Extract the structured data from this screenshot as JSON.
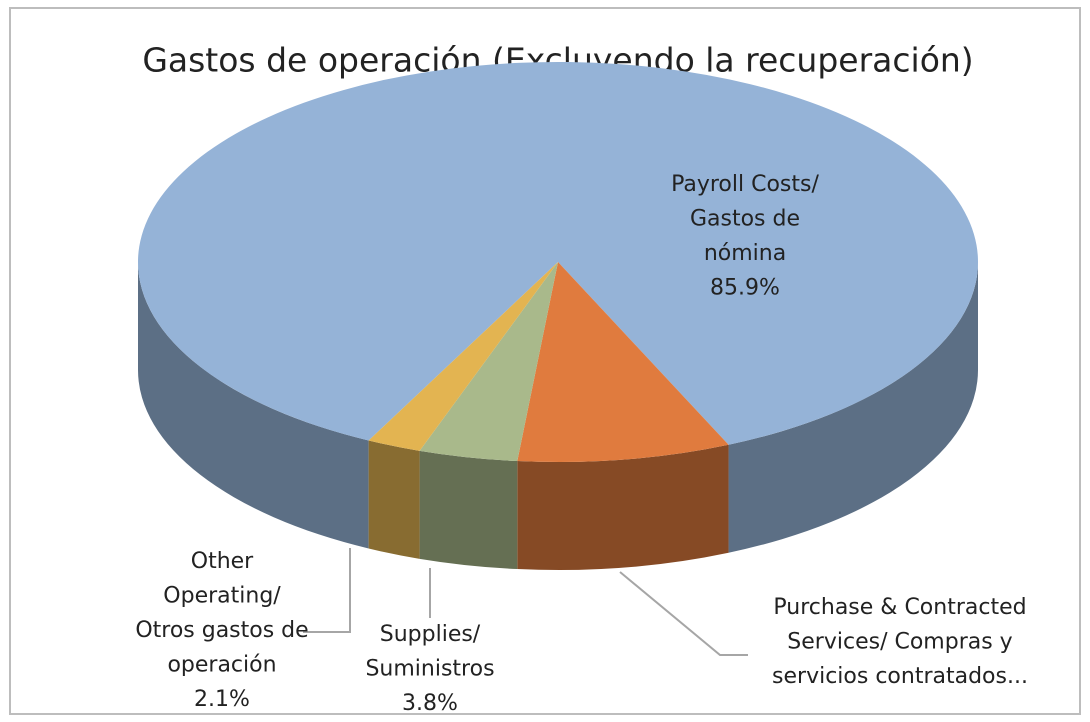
{
  "chart_data": {
    "type": "pie3d",
    "title": "Gastos de operación (Excluyendo la recuperación)",
    "categories": [
      "Payroll Costs/ Gastos de nómina",
      "Purchase & Contracted Services/ Compras y servicios contratados...",
      "Supplies/ Suministros",
      "Other Operating/ Otros gastos de operación"
    ],
    "values": [
      85.9,
      8.2,
      3.8,
      2.1
    ],
    "value_labels": [
      "85.9%",
      null,
      "3.8%",
      "2.1%"
    ],
    "colors": [
      "#95b3d7",
      "#e07b3e",
      "#a9b98b",
      "#e3b451"
    ]
  }
}
